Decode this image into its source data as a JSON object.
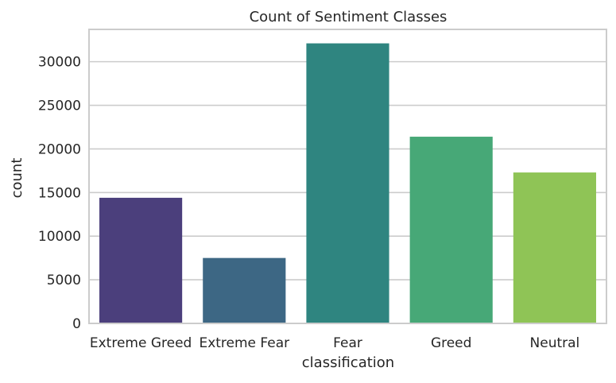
{
  "chart_data": {
    "type": "bar",
    "title": "Count of Sentiment Classes",
    "xlabel": "classification",
    "ylabel": "count",
    "categories": [
      "Extreme Greed",
      "Extreme Fear",
      "Fear",
      "Greed",
      "Neutral"
    ],
    "values": [
      14400,
      7500,
      32100,
      21400,
      17300
    ],
    "colors": [
      "#4b3f7c",
      "#3d6784",
      "#2f8580",
      "#47a877",
      "#8fc456"
    ],
    "ylim": [
      0,
      33700
    ],
    "yticks": [
      0,
      5000,
      10000,
      15000,
      20000,
      25000,
      30000
    ],
    "grid": true,
    "style": {
      "grid_color": "#cccccc",
      "spine_color": "#cccccc",
      "text_color": "#262626",
      "background": "#ffffff"
    }
  }
}
